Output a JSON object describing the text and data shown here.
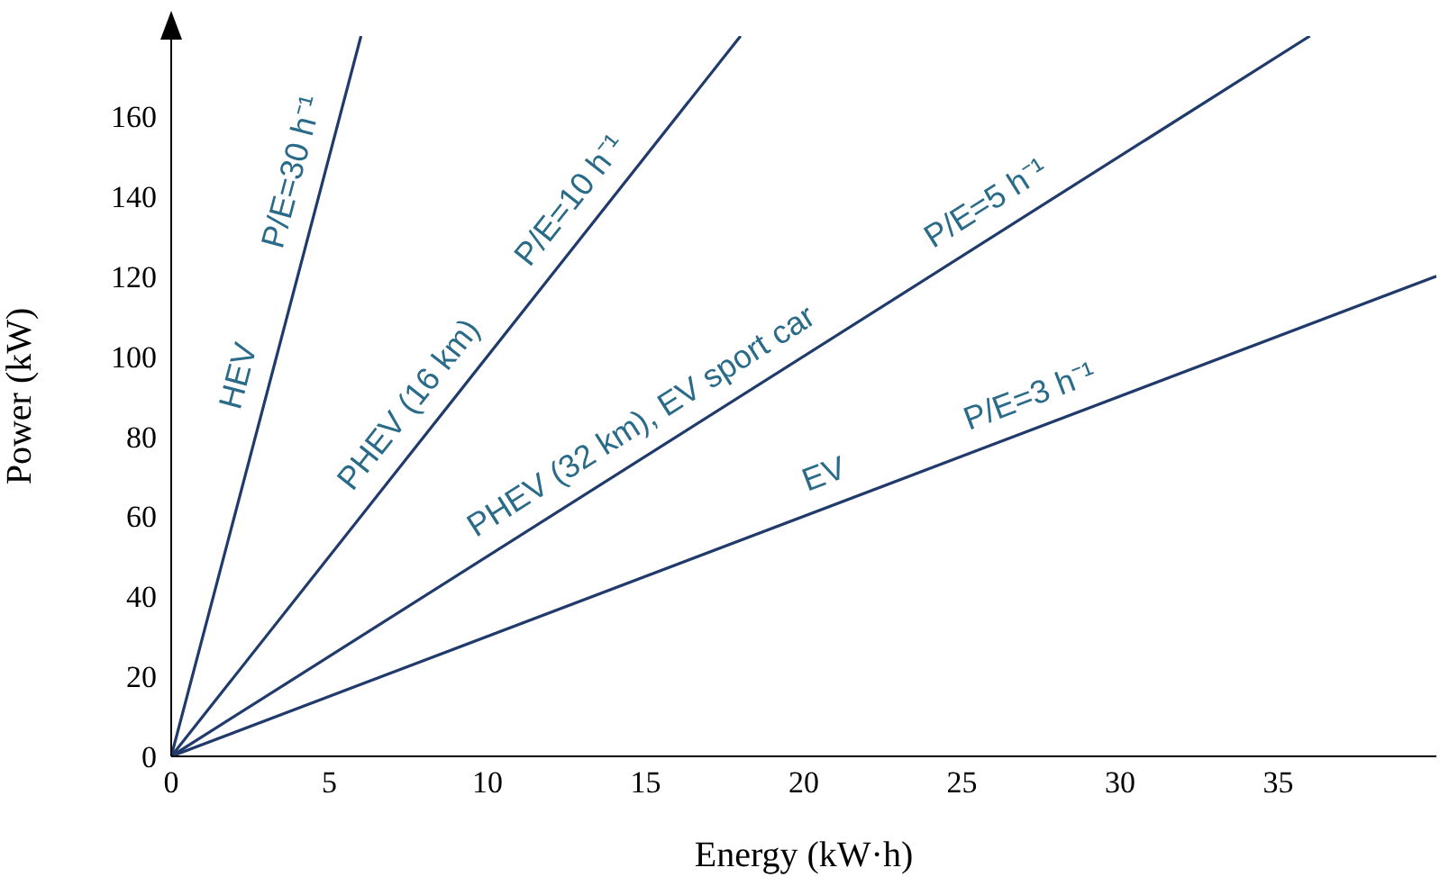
{
  "chart_data": {
    "type": "line",
    "xlabel": "Energy (kW·h)",
    "ylabel": "Power (kW)",
    "xlim": [
      0,
      40
    ],
    "ylim": [
      0,
      180
    ],
    "xticks": [
      0,
      5,
      10,
      15,
      20,
      25,
      30,
      35
    ],
    "yticks": [
      0,
      20,
      40,
      60,
      80,
      100,
      120,
      140,
      160
    ],
    "grid": false,
    "legend": false,
    "marker": "none",
    "line_style": "solid",
    "series": [
      {
        "color": "#1f3a6b",
        "x": [
          0,
          6
        ],
        "values": [
          0,
          180
        ]
      },
      {
        "color": "#1f3a6b",
        "x": [
          0,
          18
        ],
        "values": [
          0,
          180
        ]
      },
      {
        "color": "#1f3a6b",
        "x": [
          0,
          36
        ],
        "values": [
          0,
          180
        ]
      },
      {
        "color": "#1f3a6b",
        "x": [
          0,
          40
        ],
        "values": [
          0,
          120
        ]
      }
    ],
    "annotations": [
      {
        "text": "HEV",
        "x": 3.1,
        "y": 93
      },
      {
        "text": "P/E=30 h⁻¹",
        "x": 4.8,
        "y": 144
      },
      {
        "text": "PHEV (16 km)",
        "x": 8.3,
        "y": 83
      },
      {
        "text": "P/E=10 h⁻¹",
        "x": 13.4,
        "y": 134
      },
      {
        "text": "PHEV (32 km), EV sport car",
        "x": 15.4,
        "y": 77
      },
      {
        "text": "P/E=5 h⁻¹",
        "x": 26.3,
        "y": 131.5
      },
      {
        "text": "EV",
        "x": 21,
        "y": 63
      },
      {
        "text": "P/E=3 h⁻¹",
        "x": 27.5,
        "y": 82.5
      }
    ]
  }
}
